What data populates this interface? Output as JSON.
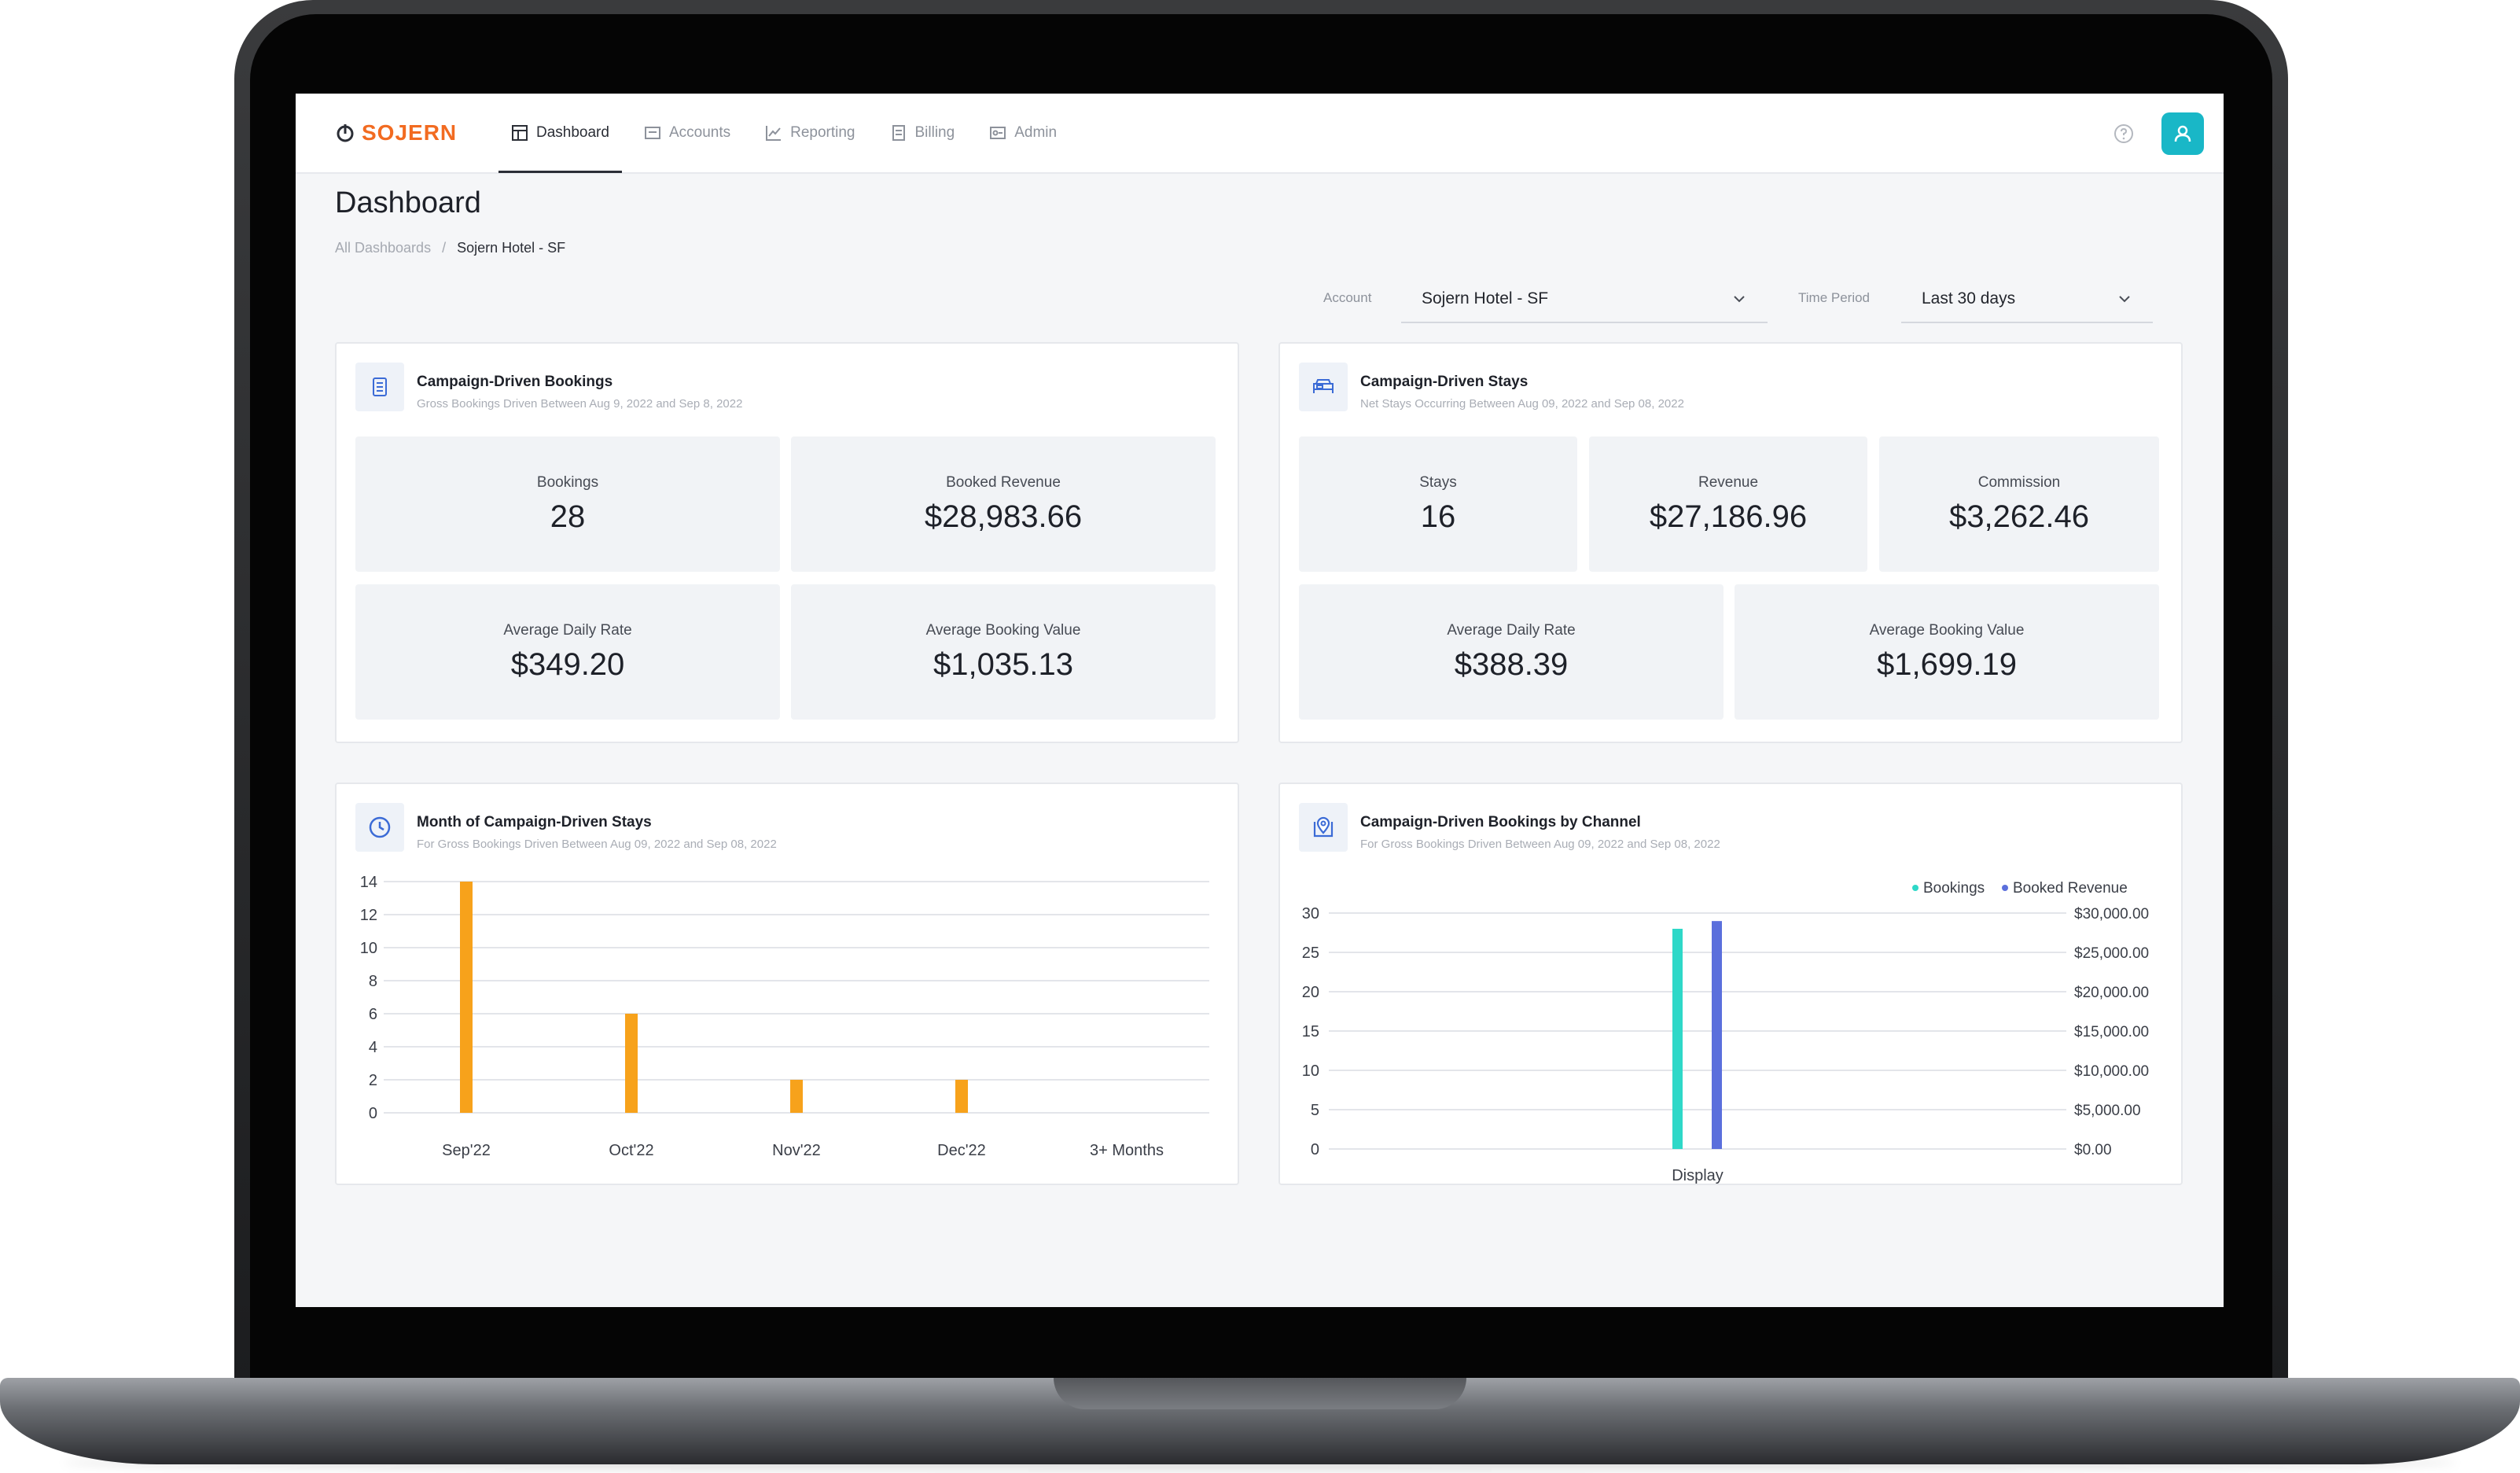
{
  "nav": {
    "logo": "SOJERN",
    "items": [
      {
        "label": "Dashboard",
        "icon": "dashboard-icon",
        "active": true
      },
      {
        "label": "Accounts",
        "icon": "accounts-icon",
        "active": false
      },
      {
        "label": "Reporting",
        "icon": "reporting-icon",
        "active": false
      },
      {
        "label": "Billing",
        "icon": "billing-icon",
        "active": false
      },
      {
        "label": "Admin",
        "icon": "admin-icon",
        "active": false
      }
    ]
  },
  "page": {
    "title": "Dashboard",
    "breadcrumb": {
      "root": "All Dashboards",
      "separator": "/",
      "current": "Sojern Hotel - SF"
    }
  },
  "filters": {
    "account": {
      "label": "Account",
      "value": "Sojern Hotel - SF"
    },
    "time_period": {
      "label": "Time Period",
      "value": "Last 30 days"
    }
  },
  "cards": {
    "bookings": {
      "title": "Campaign-Driven Bookings",
      "subtitle": "Gross Bookings Driven Between Aug 9, 2022 and Sep 8, 2022",
      "metrics": [
        {
          "label": "Bookings",
          "value": "28"
        },
        {
          "label": "Booked Revenue",
          "value": "$28,983.66"
        },
        {
          "label": "Average Daily Rate",
          "value": "$349.20"
        },
        {
          "label": "Average Booking Value",
          "value": "$1,035.13"
        }
      ]
    },
    "stays": {
      "title": "Campaign-Driven Stays",
      "subtitle": "Net Stays Occurring Between Aug 09, 2022 and Sep 08, 2022",
      "metrics": [
        {
          "label": "Stays",
          "value": "16"
        },
        {
          "label": "Revenue",
          "value": "$27,186.96"
        },
        {
          "label": "Commission",
          "value": "$3,262.46"
        },
        {
          "label": "Average Daily Rate",
          "value": "$388.39"
        },
        {
          "label": "Average Booking Value",
          "value": "$1,699.19"
        }
      ]
    },
    "month_chart": {
      "title": "Month of Campaign-Driven Stays",
      "subtitle": "For Gross Bookings Driven Between Aug 09, 2022 and Sep 08, 2022"
    },
    "channel_chart": {
      "title": "Campaign-Driven Bookings by Channel",
      "subtitle": "For Gross Bookings Driven Between Aug 09, 2022 and Sep 08, 2022"
    }
  },
  "colors": {
    "brand": "#f26b21",
    "bar_orange": "#f7a21b",
    "bookings": "#2ed8c8",
    "booked_revenue": "#5b6fdc",
    "avatar": "#19b7c7"
  },
  "chart_data": [
    {
      "type": "bar",
      "categories": [
        "Sep'22",
        "Oct'22",
        "Nov'22",
        "Dec'22",
        "3+ Months"
      ],
      "values": [
        14,
        6,
        2,
        2,
        0
      ],
      "yticks": [
        0,
        2,
        4,
        6,
        8,
        10,
        12,
        14
      ],
      "ylim": [
        0,
        14
      ],
      "grid": true
    },
    {
      "type": "bar",
      "categories": [
        "Display"
      ],
      "series": [
        {
          "name": "Bookings",
          "values": [
            28
          ],
          "axis": "left"
        },
        {
          "name": "Booked Revenue",
          "values": [
            28983.66
          ],
          "axis": "right"
        }
      ],
      "yticks_left": [
        0,
        5,
        10,
        15,
        20,
        25,
        30
      ],
      "ylim_left": [
        0,
        30
      ],
      "yticks_right": [
        "$0.00",
        "$5,000.00",
        "$10,000.00",
        "$15,000.00",
        "$20,000.00",
        "$25,000.00",
        "$30,000.00"
      ],
      "ylim_right": [
        0,
        30000
      ],
      "legend": "top-right",
      "grid": true
    }
  ]
}
